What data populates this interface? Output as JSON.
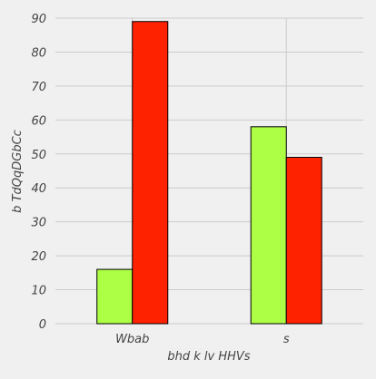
{
  "chart_data": {
    "type": "bar",
    "categories": [
      "Wbab",
      "s"
    ],
    "series": [
      {
        "color": "#adff45",
        "values": [
          16,
          58
        ]
      },
      {
        "color": "#ff2200",
        "values": [
          89,
          49
        ]
      }
    ],
    "xlabel": "bhd k lv HHVs",
    "ylabel": "b TdQqDGbCc",
    "ylim": [
      0,
      90
    ],
    "yticks": [
      0,
      10,
      20,
      30,
      40,
      50,
      60,
      70,
      80,
      90
    ],
    "grid": true,
    "legend": "none",
    "colors": {
      "background": "#f0f0f0",
      "grid": "#cbcbcb",
      "bar_edge": "#000000",
      "text": "#444444"
    }
  }
}
